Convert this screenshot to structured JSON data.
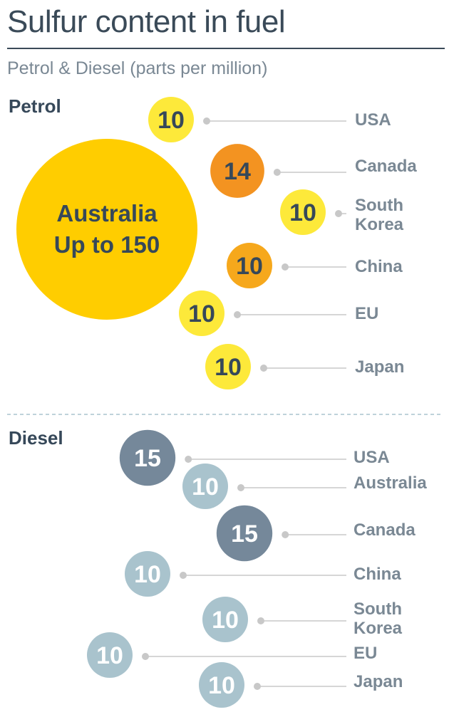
{
  "title": "Sulfur content in fuel",
  "subtitle": "Petrol & Diesel (parts per million)",
  "colors": {
    "text_dark": "#364859",
    "text_grey": "#7a8894",
    "petrol_big": "#ffcd00",
    "petrol_yellow": "#fde93a",
    "petrol_orange": "#f39321",
    "petrol_amber": "#f6a81c",
    "diesel_dark": "#75889a",
    "diesel_light": "#a9c3cd",
    "connector": "#c8c8c8",
    "divider": "#a9c3cd"
  },
  "chart_data": [
    {
      "type": "bubble",
      "name": "Petrol",
      "unit": "parts per million",
      "points": [
        {
          "country": "USA",
          "value": "10",
          "color": "petrol_yellow"
        },
        {
          "country": "Canada",
          "value": "14",
          "color": "petrol_orange"
        },
        {
          "country": "South Korea",
          "lines": [
            "South",
            "Korea"
          ],
          "value": "10",
          "color": "petrol_yellow"
        },
        {
          "country": "China",
          "value": "10",
          "color": "petrol_amber"
        },
        {
          "country": "EU",
          "value": "10",
          "color": "petrol_yellow"
        },
        {
          "country": "Japan",
          "value": "10",
          "color": "petrol_yellow"
        }
      ],
      "highlight": {
        "country": "Australia",
        "text": "Up to 150",
        "value": 150,
        "color": "petrol_big"
      }
    },
    {
      "type": "bubble",
      "name": "Diesel",
      "unit": "parts per million",
      "points": [
        {
          "country": "USA",
          "value": "15",
          "color": "diesel_dark"
        },
        {
          "country": "Australia",
          "value": "10",
          "color": "diesel_light"
        },
        {
          "country": "Canada",
          "value": "15",
          "color": "diesel_dark"
        },
        {
          "country": "China",
          "value": "10",
          "color": "diesel_light"
        },
        {
          "country": "South Korea",
          "lines": [
            "South",
            "Korea"
          ],
          "value": "10",
          "color": "diesel_light"
        },
        {
          "country": "EU",
          "value": "10",
          "color": "diesel_light"
        },
        {
          "country": "Japan",
          "value": "10",
          "color": "diesel_light"
        }
      ]
    }
  ]
}
